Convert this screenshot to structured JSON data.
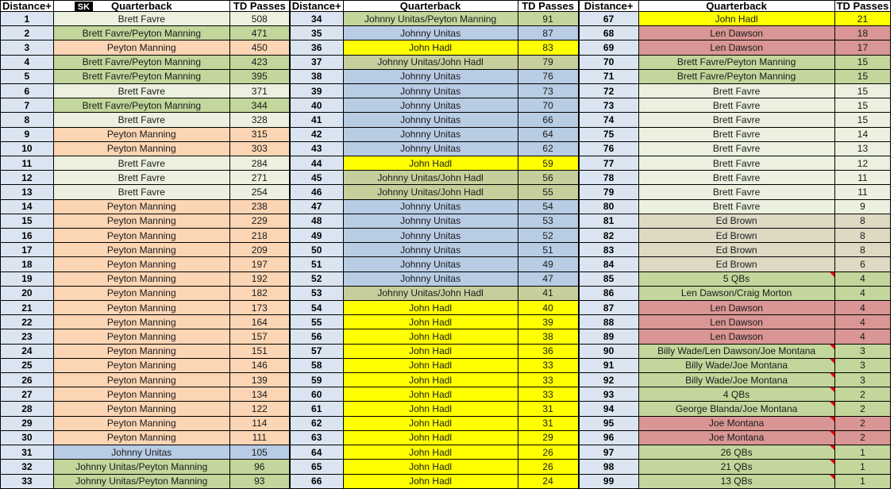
{
  "columns": {
    "distance": "Distance+",
    "quarterback": "Quarterback",
    "td_passes": "TD Passes"
  },
  "logo_text": "SK",
  "colors": {
    "header_bg": "#ffffff",
    "distance_bg": "#dbe5f1",
    "grid": "#000000",
    "note_indicator": "#ff0000",
    "qb": {
      "favre": "#ebf1de",
      "favre_manning": "#c3d69b",
      "manning": "#fcd5b4",
      "unitas": "#b8cce4",
      "hadl": "#ffff00",
      "unitas_manning": "#c3d69b",
      "unitas_hadl": "#c6cf9c",
      "dawson": "#d99694",
      "brown": "#ddd9c3",
      "montana": "#d99694",
      "multi": "#c3d69b"
    }
  },
  "row_format": [
    "distance",
    "quarterback",
    "td_passes",
    "color_key",
    "has_comment_indicator"
  ],
  "groups": [
    {
      "show_logo": true,
      "rows": [
        [
          1,
          "Brett Favre",
          508,
          "favre",
          0
        ],
        [
          2,
          "Brett Favre/Peyton Manning",
          471,
          "favre_manning",
          0
        ],
        [
          3,
          "Peyton Manning",
          450,
          "manning",
          0
        ],
        [
          4,
          "Brett Favre/Peyton Manning",
          423,
          "favre_manning",
          0
        ],
        [
          5,
          "Brett Favre/Peyton Manning",
          395,
          "favre_manning",
          0
        ],
        [
          6,
          "Brett Favre",
          371,
          "favre",
          0
        ],
        [
          7,
          "Brett Favre/Peyton Manning",
          344,
          "favre_manning",
          0
        ],
        [
          8,
          "Brett Favre",
          328,
          "favre",
          0
        ],
        [
          9,
          "Peyton Manning",
          315,
          "manning",
          0
        ],
        [
          10,
          "Peyton Manning",
          303,
          "manning",
          0
        ],
        [
          11,
          "Brett Favre",
          284,
          "favre",
          0
        ],
        [
          12,
          "Brett Favre",
          271,
          "favre",
          0
        ],
        [
          13,
          "Brett Favre",
          254,
          "favre",
          0
        ],
        [
          14,
          "Peyton Manning",
          238,
          "manning",
          0
        ],
        [
          15,
          "Peyton Manning",
          229,
          "manning",
          0
        ],
        [
          16,
          "Peyton Manning",
          218,
          "manning",
          0
        ],
        [
          17,
          "Peyton Manning",
          209,
          "manning",
          0
        ],
        [
          18,
          "Peyton Manning",
          197,
          "manning",
          0
        ],
        [
          19,
          "Peyton Manning",
          192,
          "manning",
          0
        ],
        [
          20,
          "Peyton Manning",
          182,
          "manning",
          0
        ],
        [
          21,
          "Peyton Manning",
          173,
          "manning",
          0
        ],
        [
          22,
          "Peyton Manning",
          164,
          "manning",
          0
        ],
        [
          23,
          "Peyton Manning",
          157,
          "manning",
          0
        ],
        [
          24,
          "Peyton Manning",
          151,
          "manning",
          0
        ],
        [
          25,
          "Peyton Manning",
          146,
          "manning",
          0
        ],
        [
          26,
          "Peyton Manning",
          139,
          "manning",
          0
        ],
        [
          27,
          "Peyton Manning",
          134,
          "manning",
          0
        ],
        [
          28,
          "Peyton Manning",
          122,
          "manning",
          0
        ],
        [
          29,
          "Peyton Manning",
          114,
          "manning",
          0
        ],
        [
          30,
          "Peyton Manning",
          111,
          "manning",
          0
        ],
        [
          31,
          "Johnny Unitas",
          105,
          "unitas",
          0
        ],
        [
          32,
          "Johnny Unitas/Peyton Manning",
          96,
          "unitas_manning",
          0
        ],
        [
          33,
          "Johnny Unitas/Peyton Manning",
          93,
          "unitas_manning",
          0
        ]
      ]
    },
    {
      "show_logo": false,
      "rows": [
        [
          34,
          "Johnny Unitas/Peyton Manning",
          91,
          "unitas_manning",
          0
        ],
        [
          35,
          "Johnny Unitas",
          87,
          "unitas",
          0
        ],
        [
          36,
          "John Hadl",
          83,
          "hadl",
          0
        ],
        [
          37,
          "Johnny Unitas/John Hadl",
          79,
          "unitas_hadl",
          0
        ],
        [
          38,
          "Johnny Unitas",
          76,
          "unitas",
          0
        ],
        [
          39,
          "Johnny Unitas",
          73,
          "unitas",
          0
        ],
        [
          40,
          "Johnny Unitas",
          70,
          "unitas",
          0
        ],
        [
          41,
          "Johnny Unitas",
          66,
          "unitas",
          0
        ],
        [
          42,
          "Johnny Unitas",
          64,
          "unitas",
          0
        ],
        [
          43,
          "Johnny Unitas",
          62,
          "unitas",
          0
        ],
        [
          44,
          "John Hadl",
          59,
          "hadl",
          0
        ],
        [
          45,
          "Johnny Unitas/John Hadl",
          56,
          "unitas_hadl",
          0
        ],
        [
          46,
          "Johnny Unitas/John Hadl",
          55,
          "unitas_hadl",
          0
        ],
        [
          47,
          "Johnny Unitas",
          54,
          "unitas",
          0
        ],
        [
          48,
          "Johnny Unitas",
          53,
          "unitas",
          0
        ],
        [
          49,
          "Johnny Unitas",
          52,
          "unitas",
          0
        ],
        [
          50,
          "Johnny Unitas",
          51,
          "unitas",
          0
        ],
        [
          51,
          "Johnny Unitas",
          49,
          "unitas",
          0
        ],
        [
          52,
          "Johnny Unitas",
          47,
          "unitas",
          0
        ],
        [
          53,
          "Johnny Unitas/John Hadl",
          41,
          "unitas_hadl",
          0
        ],
        [
          54,
          "John Hadl",
          40,
          "hadl",
          0
        ],
        [
          55,
          "John Hadl",
          39,
          "hadl",
          0
        ],
        [
          56,
          "John Hadl",
          38,
          "hadl",
          0
        ],
        [
          57,
          "John Hadl",
          36,
          "hadl",
          0
        ],
        [
          58,
          "John Hadl",
          33,
          "hadl",
          0
        ],
        [
          59,
          "John Hadl",
          33,
          "hadl",
          0
        ],
        [
          60,
          "John Hadl",
          33,
          "hadl",
          0
        ],
        [
          61,
          "John Hadl",
          31,
          "hadl",
          0
        ],
        [
          62,
          "John Hadl",
          31,
          "hadl",
          0
        ],
        [
          63,
          "John Hadl",
          29,
          "hadl",
          0
        ],
        [
          64,
          "John Hadl",
          26,
          "hadl",
          0
        ],
        [
          65,
          "John Hadl",
          26,
          "hadl",
          0
        ],
        [
          66,
          "John Hadl",
          24,
          "hadl",
          0
        ]
      ]
    },
    {
      "show_logo": false,
      "rows": [
        [
          67,
          "John Hadl",
          21,
          "hadl",
          0
        ],
        [
          68,
          "Len Dawson",
          18,
          "dawson",
          0
        ],
        [
          69,
          "Len Dawson",
          17,
          "dawson",
          0
        ],
        [
          70,
          "Brett Favre/Peyton Manning",
          15,
          "favre_manning",
          0
        ],
        [
          71,
          "Brett Favre/Peyton Manning",
          15,
          "favre_manning",
          0
        ],
        [
          72,
          "Brett Favre",
          15,
          "favre",
          0
        ],
        [
          73,
          "Brett Favre",
          15,
          "favre",
          0
        ],
        [
          74,
          "Brett Favre",
          15,
          "favre",
          0
        ],
        [
          75,
          "Brett Favre",
          14,
          "favre",
          0
        ],
        [
          76,
          "Brett Favre",
          13,
          "favre",
          0
        ],
        [
          77,
          "Brett Favre",
          12,
          "favre",
          0
        ],
        [
          78,
          "Brett Favre",
          11,
          "favre",
          0
        ],
        [
          79,
          "Brett Favre",
          11,
          "favre",
          0
        ],
        [
          80,
          "Brett Favre",
          9,
          "favre",
          0
        ],
        [
          81,
          "Ed Brown",
          8,
          "brown",
          0
        ],
        [
          82,
          "Ed Brown",
          8,
          "brown",
          0
        ],
        [
          83,
          "Ed Brown",
          8,
          "brown",
          0
        ],
        [
          84,
          "Ed Brown",
          6,
          "brown",
          0
        ],
        [
          85,
          "5 QBs",
          4,
          "multi",
          1
        ],
        [
          86,
          "Len Dawson/Craig Morton",
          4,
          "multi",
          0
        ],
        [
          87,
          "Len Dawson",
          4,
          "dawson",
          0
        ],
        [
          88,
          "Len Dawson",
          4,
          "dawson",
          0
        ],
        [
          89,
          "Len Dawson",
          4,
          "dawson",
          0
        ],
        [
          90,
          "Billy Wade/Len Dawson/Joe Montana",
          3,
          "multi",
          1
        ],
        [
          91,
          "Billy Wade/Joe Montana",
          3,
          "multi",
          1
        ],
        [
          92,
          "Billy Wade/Joe Montana",
          3,
          "multi",
          1
        ],
        [
          93,
          "4 QBs",
          2,
          "multi",
          1
        ],
        [
          94,
          "George Blanda/Joe Montana",
          2,
          "multi",
          1
        ],
        [
          95,
          "Joe Montana",
          2,
          "montana",
          1
        ],
        [
          96,
          "Joe Montana",
          2,
          "montana",
          1
        ],
        [
          97,
          "26 QBs",
          1,
          "multi",
          1
        ],
        [
          98,
          "21 QBs",
          1,
          "multi",
          1
        ],
        [
          99,
          "13 QBs",
          1,
          "multi",
          1
        ]
      ]
    }
  ]
}
